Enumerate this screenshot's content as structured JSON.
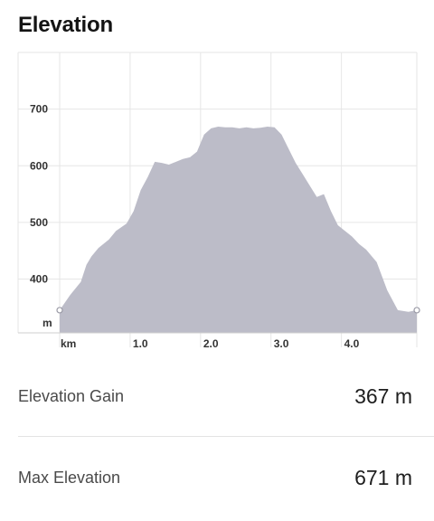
{
  "header": {
    "title": "Elevation"
  },
  "chart_data": {
    "type": "area",
    "x_unit_label": "km",
    "y_unit_label": "m",
    "x_ticks": [
      "1.0",
      "2.0",
      "3.0",
      "4.0"
    ],
    "y_ticks": [
      "400",
      "500",
      "600",
      "700"
    ],
    "xlim": [
      0,
      5.07
    ],
    "ylim": [
      305,
      800
    ],
    "fill_color": "#bcbcc8",
    "grid": true,
    "series": [
      {
        "x": [
          0,
          0.15,
          0.3,
          0.38,
          0.45,
          0.55,
          0.7,
          0.8,
          0.95,
          1.05,
          1.15,
          1.25,
          1.35,
          1.45,
          1.55,
          1.65,
          1.75,
          1.85,
          1.95,
          2.05,
          2.15,
          2.25,
          2.35,
          2.45,
          2.55,
          2.65,
          2.75,
          2.85,
          2.95,
          3.05,
          3.15,
          3.25,
          3.35,
          3.45,
          3.55,
          3.65,
          3.75,
          3.85,
          3.95,
          4.05,
          4.15,
          4.25,
          4.35,
          4.5,
          4.65,
          4.8,
          4.95,
          5.07
        ],
        "y": [
          345,
          372,
          395,
          425,
          440,
          455,
          470,
          485,
          498,
          520,
          557,
          580,
          607,
          605,
          602,
          607,
          612,
          615,
          625,
          655,
          666,
          669,
          668,
          668,
          666,
          668,
          666,
          667,
          669,
          668,
          655,
          630,
          605,
          585,
          565,
          545,
          550,
          520,
          495,
          485,
          475,
          462,
          452,
          430,
          380,
          345,
          342,
          345
        ]
      }
    ]
  },
  "stats": [
    {
      "label": "Elevation Gain",
      "value": "367 m"
    },
    {
      "label": "Max Elevation",
      "value": "671 m"
    }
  ]
}
